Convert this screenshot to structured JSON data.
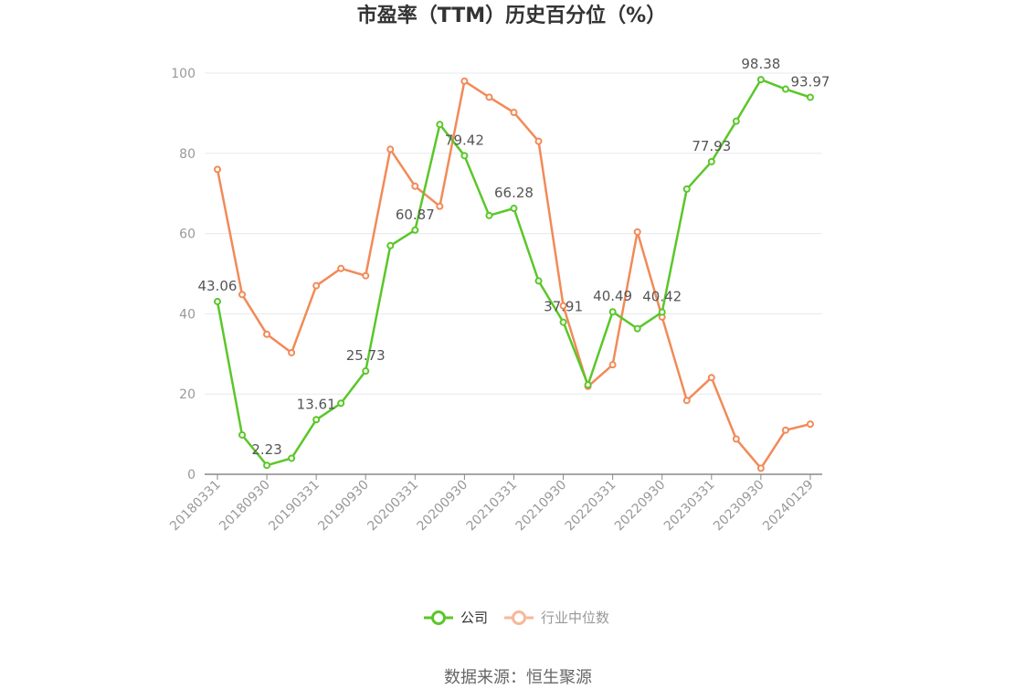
{
  "chart_data": {
    "type": "line",
    "title": "市盈率（TTM）历史百分位（%）",
    "xlabel": "",
    "ylabel": "",
    "ylim": [
      0,
      100
    ],
    "yticks": [
      0,
      20,
      40,
      60,
      80,
      100
    ],
    "grid": true,
    "legend_position": "bottom",
    "x": [
      "20180331",
      "20180630",
      "20180930",
      "20181231",
      "20190331",
      "20190630",
      "20190930",
      "20191231",
      "20200331",
      "20200630",
      "20200930",
      "20201231",
      "20210331",
      "20210630",
      "20210930",
      "20211231",
      "20220331",
      "20220630",
      "20220930",
      "20221231",
      "20230331",
      "20230630",
      "20230930",
      "20231231",
      "20240129"
    ],
    "x_tick_labels": [
      "20180331",
      "20180930",
      "20190331",
      "20190930",
      "20200331",
      "20200930",
      "20210331",
      "20210930",
      "20220331",
      "20220930",
      "20230331",
      "20230930",
      "20240129"
    ],
    "series": [
      {
        "name": "公司",
        "color": "#5ac729",
        "values": [
          43.06,
          9.8,
          2.23,
          4.0,
          13.61,
          17.7,
          25.73,
          57.0,
          60.87,
          87.2,
          79.42,
          64.5,
          66.28,
          48.2,
          37.91,
          22.3,
          40.49,
          36.3,
          40.42,
          71.1,
          77.93,
          88.0,
          98.38,
          96.0,
          93.97
        ],
        "data_labels": {
          "0": "43.06",
          "2": "2.23",
          "4": "13.61",
          "6": "25.73",
          "8": "60.87",
          "10": "79.42",
          "12": "66.28",
          "14": "37.91",
          "16": "40.49",
          "18": "40.42",
          "20": "77.93",
          "22": "98.38",
          "24": "93.97"
        }
      },
      {
        "name": "行业中位数",
        "color": "#f28a58",
        "values": [
          76.0,
          44.8,
          34.9,
          30.3,
          47.0,
          51.3,
          49.5,
          81.0,
          71.8,
          66.8,
          98.0,
          94.0,
          90.2,
          83.0,
          42.0,
          21.9,
          27.3,
          60.4,
          39.2,
          18.4,
          24.1,
          8.8,
          1.5,
          11.0,
          12.5
        ],
        "data_labels": {}
      }
    ]
  },
  "source": {
    "text": "数据来源：恒生聚源"
  }
}
